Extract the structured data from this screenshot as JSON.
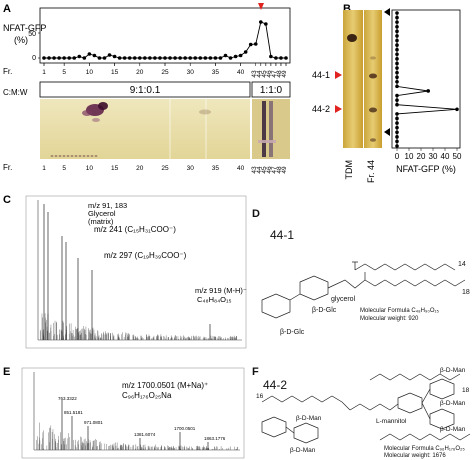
{
  "panels": {
    "A": {
      "label": "A",
      "ylabel": "NFAT-GFP",
      "yunit": "(%)",
      "yticks": [
        "50",
        "0"
      ],
      "fraction_axis_label": "Fr.",
      "fraction_ticks": [
        "1",
        "5",
        "10",
        "15",
        "20",
        "25",
        "30",
        "35",
        "40",
        "43",
        "44",
        "45",
        "46",
        "47",
        "48",
        "49"
      ],
      "solvent_label": "C:M:W",
      "solvent_ratio_1": "9:1:0.1",
      "solvent_ratio_2": "1:1:0",
      "tlc_fraction_ticks": [
        "1",
        "5",
        "10",
        "15",
        "20",
        "25",
        "30",
        "35",
        "40",
        "43",
        "44",
        "45",
        "46",
        "47",
        "48",
        "49"
      ],
      "marker_color": "#e0231f"
    },
    "B": {
      "label": "B",
      "band_1": "44-1",
      "band_2": "44-2",
      "lane_1": "TDM",
      "lane_2": "Fr. 44",
      "xlabel": "NFAT-GFP (%)",
      "xticks": [
        "0",
        "10",
        "20",
        "30",
        "40",
        "50"
      ]
    },
    "C": {
      "label": "C",
      "peak_1": "m/z 91, 183",
      "peak_1b": "Glycerol",
      "peak_1c": "(matrix)",
      "peak_2": "m/z 241 (C₁₅H₃₁COO⁻)",
      "peak_3": "m/z 297 (C₁₉H₃₉COO⁻)",
      "peak_4": "m/z 919 (M-H)⁻",
      "peak_4b": "C₄₈H₈₄O₁₅"
    },
    "D": {
      "label": "D",
      "title": "44-1",
      "formula": "Molecular Formula C₄₈H₉₀O₁₅",
      "weight": "Molecular weight: 920",
      "glc_1": "β-D-Glc",
      "glc_2": "β-D-Glc",
      "glycerol": "glycerol",
      "chain_14": "14",
      "chain_18": "18"
    },
    "E": {
      "label": "E",
      "peak_main": "m/z 1700.0501 (M+Na)⁺",
      "peak_formula": "C₉₆H₁₇₆O₂₅Na",
      "peak_labels": [
        "763.3322",
        "851.5181",
        "971.0801",
        "1381.6074",
        "1700.0501",
        "1863.1776"
      ]
    },
    "F": {
      "label": "F",
      "title": "44-2",
      "man": "β-D-Man",
      "mannitol": "L-mannitol",
      "chain_16": "16",
      "chain_18": "18",
      "formula": "Molecular Formula C₉₆H₁₇₆O₂₅",
      "weight": "Molecular weight: 1676"
    }
  },
  "chart_data": [
    {
      "type": "line",
      "title": "",
      "xlabel": "Fr.",
      "ylabel": "NFAT-GFP (%)",
      "x": [
        1,
        2,
        3,
        4,
        5,
        6,
        7,
        8,
        9,
        10,
        11,
        12,
        13,
        14,
        15,
        16,
        17,
        18,
        19,
        20,
        21,
        22,
        23,
        24,
        25,
        26,
        27,
        28,
        29,
        30,
        31,
        32,
        33,
        34,
        35,
        36,
        37,
        38,
        39,
        40,
        41,
        42,
        43,
        44,
        45,
        46,
        47,
        48,
        49
      ],
      "values": [
        0,
        0,
        0,
        0,
        0,
        0,
        0,
        3,
        0,
        8,
        5,
        0,
        0,
        6,
        3,
        0,
        0,
        0,
        0,
        0,
        0,
        0,
        0,
        0,
        0,
        0,
        0,
        0,
        0,
        0,
        0,
        0,
        0,
        0,
        0,
        0,
        5,
        0,
        3,
        5,
        12,
        27,
        28,
        72,
        68,
        3,
        0,
        0,
        0
      ],
      "ylim": [
        0,
        80
      ],
      "yticks": [
        0,
        50
      ]
    },
    {
      "type": "line",
      "title": "",
      "xlabel": "NFAT-GFP (%)",
      "ylabel": "",
      "y_position": "TLC Rf (top to bottom)",
      "values": [
        0,
        0,
        0,
        0,
        0,
        0,
        0,
        0,
        0,
        0,
        0,
        0,
        0,
        0,
        0,
        0,
        0,
        26,
        0,
        0,
        0,
        50,
        0,
        0,
        0,
        0,
        0,
        0,
        0,
        0
      ],
      "xlim": [
        0,
        50
      ],
      "xticks": [
        0,
        10,
        20,
        30,
        40,
        50
      ]
    }
  ]
}
